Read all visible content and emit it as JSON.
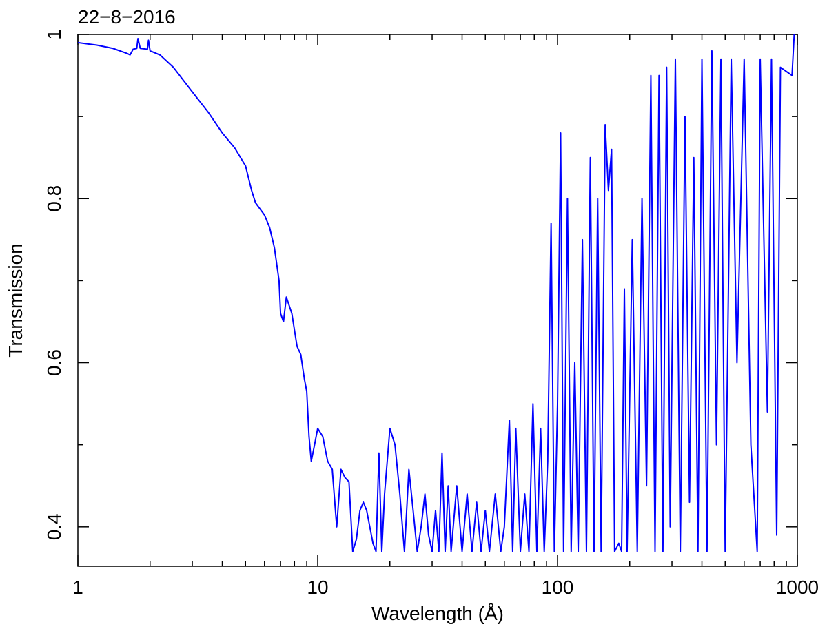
{
  "chart_data": {
    "type": "line",
    "title": "22−8−2016",
    "x_label": "Wavelength (Å)",
    "y_label": "Transmission",
    "xscale": "log",
    "xlim": [
      1,
      1000
    ],
    "xticks": [
      1,
      10,
      100,
      1000
    ],
    "xminorticks": [
      2,
      3,
      4,
      5,
      6,
      7,
      8,
      9,
      20,
      30,
      40,
      50,
      60,
      70,
      80,
      90,
      200,
      300,
      400,
      500,
      600,
      700,
      800,
      900
    ],
    "ylim": [
      0.352,
      1
    ],
    "yticks": [
      0.4,
      0.6,
      0.8,
      1
    ],
    "yminorticks": [
      0.5,
      0.7,
      0.9
    ],
    "grid": false,
    "series": [
      {
        "name": "Transmission",
        "color": "#0000ff",
        "x": [
          1,
          1.2,
          1.4,
          1.6,
          1.65,
          1.7,
          1.76,
          1.78,
          1.82,
          1.95,
          1.97,
          2.0,
          2.2,
          2.5,
          3.0,
          3.5,
          4.0,
          4.5,
          5.0,
          5.3,
          5.5,
          6.0,
          6.3,
          6.6,
          6.9,
          7.0,
          7.2,
          7.4,
          7.8,
          8.2,
          8.5,
          8.8,
          9.0,
          9.2,
          9.4,
          9.7,
          10,
          10.5,
          11,
          11.5,
          12,
          12.5,
          13,
          13.5,
          14,
          14.5,
          15,
          15.5,
          16,
          17,
          17.5,
          18,
          18.5,
          19,
          20,
          21,
          22,
          23,
          24,
          25,
          26,
          27,
          28,
          29,
          30,
          31,
          32,
          33,
          34,
          35,
          36,
          38,
          40,
          42,
          44,
          46,
          48,
          50,
          52,
          55,
          58,
          60,
          63,
          65,
          67,
          70,
          73,
          76,
          79,
          82,
          85,
          88,
          91,
          94,
          97,
          100,
          103,
          106,
          110,
          114,
          118,
          122,
          127,
          132,
          137,
          142,
          147,
          152,
          158,
          163,
          168,
          173,
          180,
          185,
          190,
          195,
          205,
          215,
          225,
          235,
          245,
          255,
          265,
          275,
          285,
          295,
          310,
          325,
          340,
          355,
          370,
          385,
          400,
          420,
          440,
          460,
          480,
          500,
          530,
          560,
          600,
          640,
          680,
          700,
          750,
          780,
          820,
          850,
          950,
          970
        ],
        "values": [
          0.99,
          0.987,
          0.983,
          0.977,
          0.975,
          0.982,
          0.983,
          0.995,
          0.983,
          0.982,
          0.993,
          0.98,
          0.975,
          0.96,
          0.93,
          0.905,
          0.88,
          0.862,
          0.84,
          0.81,
          0.795,
          0.78,
          0.765,
          0.74,
          0.7,
          0.66,
          0.65,
          0.68,
          0.66,
          0.62,
          0.61,
          0.58,
          0.565,
          0.51,
          0.48,
          0.5,
          0.52,
          0.51,
          0.48,
          0.47,
          0.4,
          0.47,
          0.46,
          0.455,
          0.37,
          0.385,
          0.42,
          0.43,
          0.42,
          0.38,
          0.37,
          0.49,
          0.37,
          0.44,
          0.52,
          0.5,
          0.44,
          0.37,
          0.47,
          0.42,
          0.37,
          0.4,
          0.44,
          0.39,
          0.37,
          0.42,
          0.37,
          0.49,
          0.37,
          0.45,
          0.37,
          0.45,
          0.37,
          0.44,
          0.37,
          0.43,
          0.37,
          0.42,
          0.37,
          0.44,
          0.37,
          0.4,
          0.53,
          0.37,
          0.52,
          0.37,
          0.44,
          0.37,
          0.55,
          0.37,
          0.52,
          0.37,
          0.48,
          0.77,
          0.37,
          0.55,
          0.88,
          0.37,
          0.8,
          0.37,
          0.6,
          0.37,
          0.75,
          0.37,
          0.85,
          0.37,
          0.8,
          0.37,
          0.89,
          0.81,
          0.86,
          0.37,
          0.38,
          0.37,
          0.69,
          0.37,
          0.75,
          0.37,
          0.8,
          0.45,
          0.95,
          0.37,
          0.95,
          0.37,
          0.96,
          0.4,
          0.97,
          0.37,
          0.9,
          0.43,
          0.85,
          0.37,
          0.97,
          0.37,
          0.98,
          0.5,
          0.97,
          0.37,
          0.97,
          0.6,
          0.97,
          0.5,
          0.37,
          0.97,
          0.54,
          0.97,
          0.39,
          0.96,
          0.95,
          1.0
        ]
      }
    ]
  }
}
